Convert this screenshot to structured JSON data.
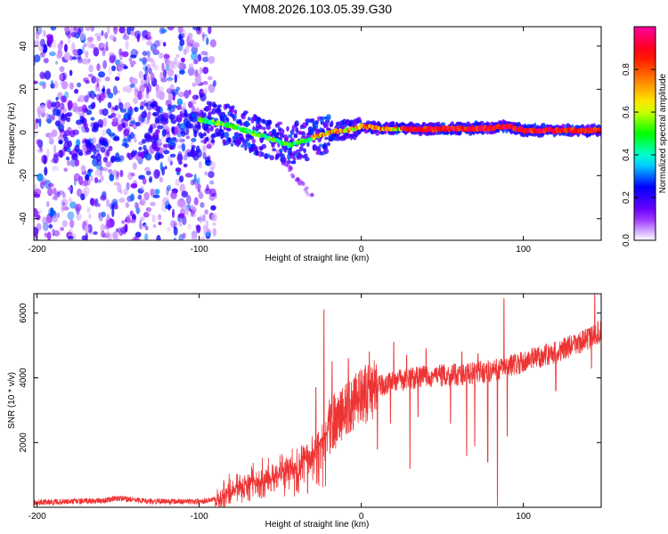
{
  "title": "YM08.2026.103.05.39.G30",
  "chart_data": [
    {
      "type": "heatmap",
      "name": "spectrogram",
      "xlabel": "Height of straight line (km)",
      "ylabel": "Frequency (Hz)",
      "xlim": [
        -202,
        148
      ],
      "ylim": [
        -50,
        49
      ],
      "xticks": [
        -200,
        -100,
        0,
        100
      ],
      "yticks": [
        -40,
        -20,
        0,
        20,
        40
      ],
      "colorbar": {
        "label": "Normalized spectral amplitude",
        "range": [
          0,
          1
        ],
        "ticks": [
          "0.0",
          "0.2",
          "0.4",
          "0.6",
          "0.8"
        ],
        "colors": [
          "#ffffff",
          "#8000ff",
          "#0000ff",
          "#00ffff",
          "#00ff00",
          "#ffff00",
          "#ff8000",
          "#ff0000",
          "#ff00a0"
        ]
      },
      "ridge": [
        [
          -100,
          6
        ],
        [
          -80,
          3
        ],
        [
          -60,
          -2
        ],
        [
          -45,
          -6
        ],
        [
          -32,
          -3
        ],
        [
          -20,
          0
        ],
        [
          -5,
          1.5
        ],
        [
          0,
          3
        ],
        [
          10,
          2
        ],
        [
          40,
          1.5
        ],
        [
          80,
          2
        ],
        [
          90,
          3
        ],
        [
          100,
          1
        ],
        [
          148,
          1
        ]
      ]
    },
    {
      "type": "line",
      "name": "snr",
      "xlabel": "Height of straight line (km)",
      "ylabel": "SNR (10 * v/v)",
      "xlim": [
        -202,
        148
      ],
      "ylim": [
        0,
        6600
      ],
      "xticks": [
        -200,
        -100,
        0,
        100
      ],
      "yticks": [
        2000,
        4000,
        6000
      ],
      "color": "#ee3333",
      "trend": [
        [
          -202,
          150
        ],
        [
          -160,
          200
        ],
        [
          -150,
          280
        ],
        [
          -130,
          180
        ],
        [
          -100,
          180
        ],
        [
          -90,
          250
        ],
        [
          -80,
          550
        ],
        [
          -60,
          900
        ],
        [
          -40,
          1300
        ],
        [
          -30,
          1700
        ],
        [
          -20,
          2500
        ],
        [
          -10,
          3000
        ],
        [
          0,
          3400
        ],
        [
          10,
          3700
        ],
        [
          20,
          3900
        ],
        [
          40,
          4050
        ],
        [
          60,
          4100
        ],
        [
          80,
          4200
        ],
        [
          100,
          4500
        ],
        [
          120,
          4800
        ],
        [
          140,
          5200
        ],
        [
          148,
          5450
        ]
      ],
      "spikes": [
        [
          -28,
          3700
        ],
        [
          -23,
          6100
        ],
        [
          -18,
          4500
        ],
        [
          -15,
          3200
        ],
        [
          -8,
          4600
        ],
        [
          5,
          4800
        ],
        [
          20,
          5100
        ],
        [
          28,
          4700
        ],
        [
          40,
          4900
        ],
        [
          62,
          4800
        ],
        [
          72,
          4750
        ],
        [
          88,
          6450
        ],
        [
          97,
          4600
        ],
        [
          140,
          5500
        ],
        [
          144,
          6600
        ]
      ],
      "dips": [
        [
          -25,
          1200
        ],
        [
          10,
          1800
        ],
        [
          18,
          2600
        ],
        [
          30,
          1200
        ],
        [
          35,
          2800
        ],
        [
          55,
          2600
        ],
        [
          65,
          1600
        ],
        [
          70,
          1900
        ],
        [
          78,
          1400
        ],
        [
          84,
          60
        ],
        [
          90,
          2200
        ],
        [
          120,
          3600
        ],
        [
          142,
          4300
        ]
      ]
    }
  ]
}
